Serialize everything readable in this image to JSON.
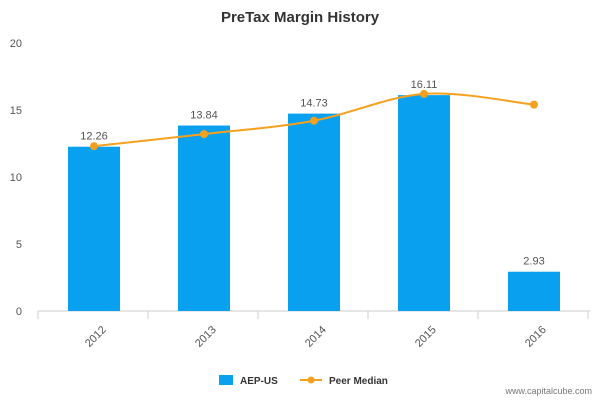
{
  "chart_data": {
    "type": "bar",
    "title": "PreTax Margin History",
    "categories": [
      "2012",
      "2013",
      "2014",
      "2015",
      "2016"
    ],
    "series": [
      {
        "name": "AEP-US",
        "kind": "bar",
        "color": "#0aa0f0",
        "values": [
          12.26,
          13.84,
          14.73,
          16.11,
          2.93
        ],
        "labels": [
          "12.26",
          "13.84",
          "14.73",
          "16.11",
          "2.93"
        ]
      },
      {
        "name": "Peer Median",
        "kind": "line",
        "color": "#f5a01e",
        "values": [
          12.3,
          13.2,
          14.2,
          16.2,
          15.4
        ]
      }
    ],
    "ylim": [
      0,
      20
    ],
    "yticks": [
      "0",
      "5",
      "10",
      "15",
      "20"
    ],
    "grid": false,
    "legend_position": "bottom-center"
  },
  "watermark": "www.capitalcube.com"
}
